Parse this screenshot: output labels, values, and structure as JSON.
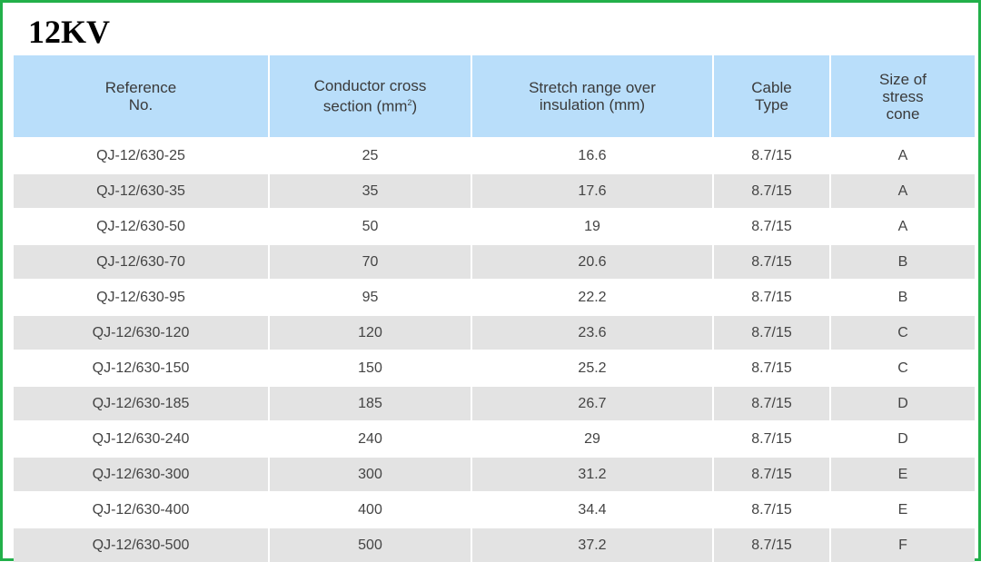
{
  "title": "12KV",
  "headers": {
    "reference": [
      "Reference",
      "No."
    ],
    "conductor": [
      "Conductor cross",
      "section (mm",
      "2",
      ")"
    ],
    "stretch": [
      "Stretch range over",
      "insulation (mm)"
    ],
    "cable": [
      "Cable",
      "Type"
    ],
    "stress": [
      "Size of",
      "stress",
      "cone"
    ]
  },
  "rows": [
    {
      "ref": "QJ-12/630-25",
      "section": "25",
      "stretch": "16.6",
      "cable": "8.7/15",
      "cone": "A"
    },
    {
      "ref": "QJ-12/630-35",
      "section": "35",
      "stretch": "17.6",
      "cable": "8.7/15",
      "cone": "A"
    },
    {
      "ref": "QJ-12/630-50",
      "section": "50",
      "stretch": "19",
      "cable": "8.7/15",
      "cone": "A"
    },
    {
      "ref": "QJ-12/630-70",
      "section": "70",
      "stretch": "20.6",
      "cable": "8.7/15",
      "cone": "B"
    },
    {
      "ref": "QJ-12/630-95",
      "section": "95",
      "stretch": "22.2",
      "cable": "8.7/15",
      "cone": "B"
    },
    {
      "ref": "QJ-12/630-120",
      "section": "120",
      "stretch": "23.6",
      "cable": "8.7/15",
      "cone": "C"
    },
    {
      "ref": "QJ-12/630-150",
      "section": "150",
      "stretch": "25.2",
      "cable": "8.7/15",
      "cone": "C"
    },
    {
      "ref": "QJ-12/630-185",
      "section": "185",
      "stretch": "26.7",
      "cable": "8.7/15",
      "cone": "D"
    },
    {
      "ref": "QJ-12/630-240",
      "section": "240",
      "stretch": "29",
      "cable": "8.7/15",
      "cone": "D"
    },
    {
      "ref": "QJ-12/630-300",
      "section": "300",
      "stretch": "31.2",
      "cable": "8.7/15",
      "cone": "E"
    },
    {
      "ref": "QJ-12/630-400",
      "section": "400",
      "stretch": "34.4",
      "cable": "8.7/15",
      "cone": "E"
    },
    {
      "ref": "QJ-12/630-500",
      "section": "500",
      "stretch": "37.2",
      "cable": "8.7/15",
      "cone": "F"
    }
  ],
  "colors": {
    "frame": "#22b04a",
    "header_bg": "#b9defa",
    "row_alt_bg": "#e3e3e3"
  }
}
